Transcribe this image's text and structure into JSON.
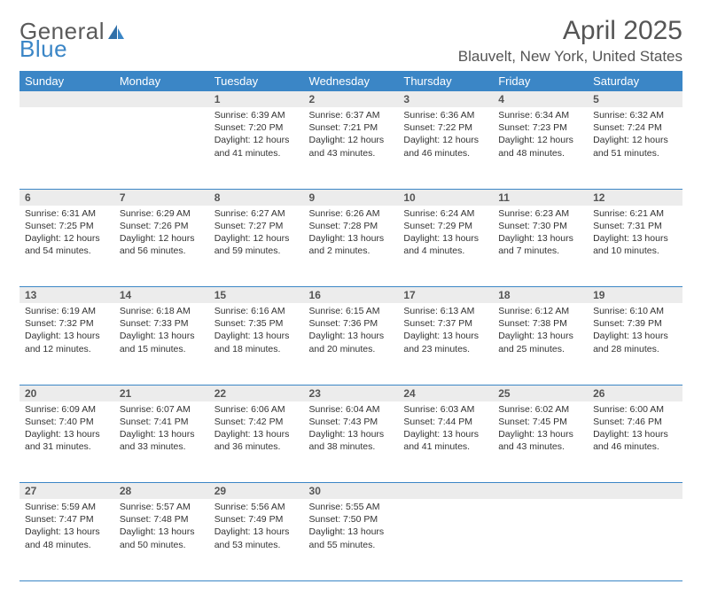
{
  "brand": {
    "part1": "General",
    "part2": "Blue"
  },
  "title": "April 2025",
  "location": "Blauvelt, New York, United States",
  "colors": {
    "header_bg": "#3b86c6",
    "header_text": "#ffffff",
    "daynum_bg": "#ececec",
    "text": "#333333",
    "rule": "#3b86c6",
    "logo_gray": "#5a5a5a",
    "logo_blue": "#3b86c6"
  },
  "weekdays": [
    "Sunday",
    "Monday",
    "Tuesday",
    "Wednesday",
    "Thursday",
    "Friday",
    "Saturday"
  ],
  "layout": {
    "first_weekday_index": 2,
    "days_in_month": 30,
    "rows": 5,
    "cols": 7
  },
  "days": {
    "1": {
      "sunrise": "6:39 AM",
      "sunset": "7:20 PM",
      "daylight": "12 hours and 41 minutes."
    },
    "2": {
      "sunrise": "6:37 AM",
      "sunset": "7:21 PM",
      "daylight": "12 hours and 43 minutes."
    },
    "3": {
      "sunrise": "6:36 AM",
      "sunset": "7:22 PM",
      "daylight": "12 hours and 46 minutes."
    },
    "4": {
      "sunrise": "6:34 AM",
      "sunset": "7:23 PM",
      "daylight": "12 hours and 48 minutes."
    },
    "5": {
      "sunrise": "6:32 AM",
      "sunset": "7:24 PM",
      "daylight": "12 hours and 51 minutes."
    },
    "6": {
      "sunrise": "6:31 AM",
      "sunset": "7:25 PM",
      "daylight": "12 hours and 54 minutes."
    },
    "7": {
      "sunrise": "6:29 AM",
      "sunset": "7:26 PM",
      "daylight": "12 hours and 56 minutes."
    },
    "8": {
      "sunrise": "6:27 AM",
      "sunset": "7:27 PM",
      "daylight": "12 hours and 59 minutes."
    },
    "9": {
      "sunrise": "6:26 AM",
      "sunset": "7:28 PM",
      "daylight": "13 hours and 2 minutes."
    },
    "10": {
      "sunrise": "6:24 AM",
      "sunset": "7:29 PM",
      "daylight": "13 hours and 4 minutes."
    },
    "11": {
      "sunrise": "6:23 AM",
      "sunset": "7:30 PM",
      "daylight": "13 hours and 7 minutes."
    },
    "12": {
      "sunrise": "6:21 AM",
      "sunset": "7:31 PM",
      "daylight": "13 hours and 10 minutes."
    },
    "13": {
      "sunrise": "6:19 AM",
      "sunset": "7:32 PM",
      "daylight": "13 hours and 12 minutes."
    },
    "14": {
      "sunrise": "6:18 AM",
      "sunset": "7:33 PM",
      "daylight": "13 hours and 15 minutes."
    },
    "15": {
      "sunrise": "6:16 AM",
      "sunset": "7:35 PM",
      "daylight": "13 hours and 18 minutes."
    },
    "16": {
      "sunrise": "6:15 AM",
      "sunset": "7:36 PM",
      "daylight": "13 hours and 20 minutes."
    },
    "17": {
      "sunrise": "6:13 AM",
      "sunset": "7:37 PM",
      "daylight": "13 hours and 23 minutes."
    },
    "18": {
      "sunrise": "6:12 AM",
      "sunset": "7:38 PM",
      "daylight": "13 hours and 25 minutes."
    },
    "19": {
      "sunrise": "6:10 AM",
      "sunset": "7:39 PM",
      "daylight": "13 hours and 28 minutes."
    },
    "20": {
      "sunrise": "6:09 AM",
      "sunset": "7:40 PM",
      "daylight": "13 hours and 31 minutes."
    },
    "21": {
      "sunrise": "6:07 AM",
      "sunset": "7:41 PM",
      "daylight": "13 hours and 33 minutes."
    },
    "22": {
      "sunrise": "6:06 AM",
      "sunset": "7:42 PM",
      "daylight": "13 hours and 36 minutes."
    },
    "23": {
      "sunrise": "6:04 AM",
      "sunset": "7:43 PM",
      "daylight": "13 hours and 38 minutes."
    },
    "24": {
      "sunrise": "6:03 AM",
      "sunset": "7:44 PM",
      "daylight": "13 hours and 41 minutes."
    },
    "25": {
      "sunrise": "6:02 AM",
      "sunset": "7:45 PM",
      "daylight": "13 hours and 43 minutes."
    },
    "26": {
      "sunrise": "6:00 AM",
      "sunset": "7:46 PM",
      "daylight": "13 hours and 46 minutes."
    },
    "27": {
      "sunrise": "5:59 AM",
      "sunset": "7:47 PM",
      "daylight": "13 hours and 48 minutes."
    },
    "28": {
      "sunrise": "5:57 AM",
      "sunset": "7:48 PM",
      "daylight": "13 hours and 50 minutes."
    },
    "29": {
      "sunrise": "5:56 AM",
      "sunset": "7:49 PM",
      "daylight": "13 hours and 53 minutes."
    },
    "30": {
      "sunrise": "5:55 AM",
      "sunset": "7:50 PM",
      "daylight": "13 hours and 55 minutes."
    }
  },
  "labels": {
    "sunrise_prefix": "Sunrise: ",
    "sunset_prefix": "Sunset: ",
    "daylight_prefix": "Daylight: "
  }
}
